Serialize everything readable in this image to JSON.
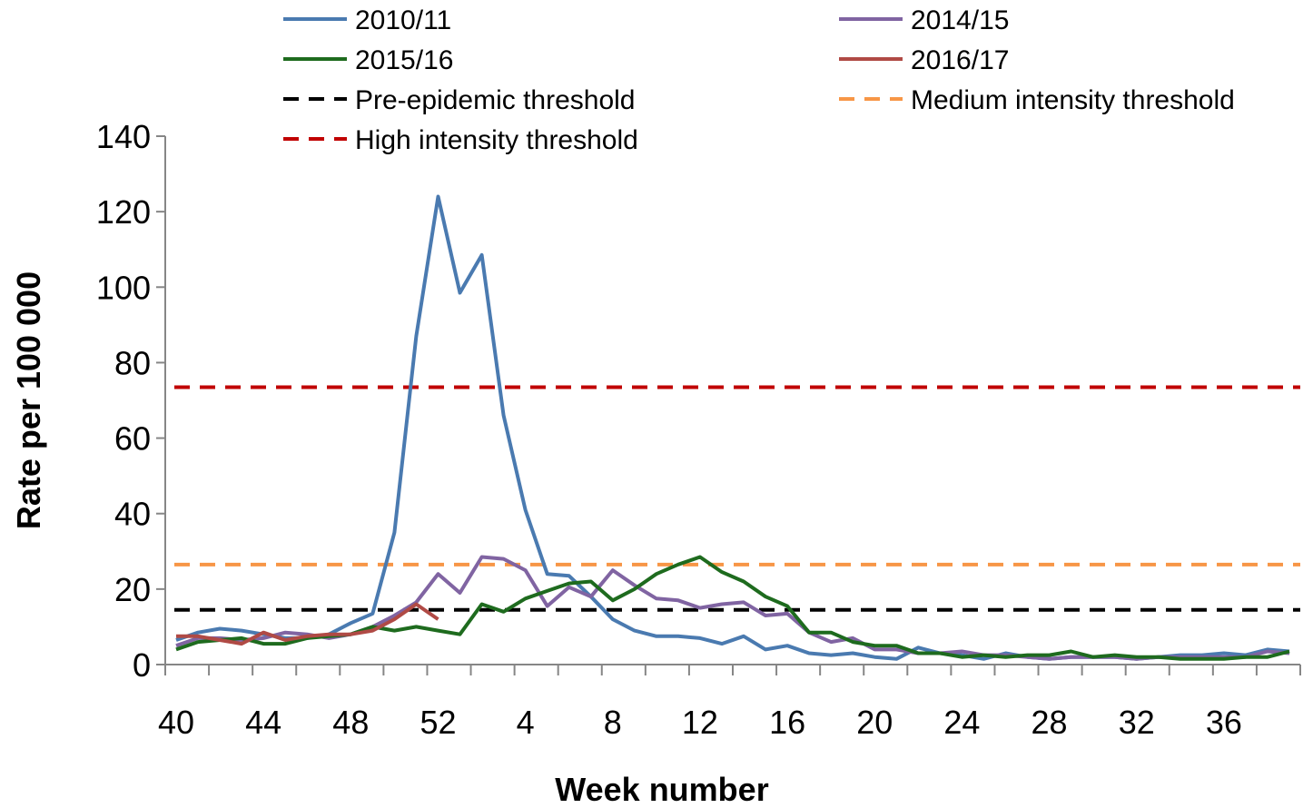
{
  "chart_data": {
    "type": "line",
    "title": "",
    "xlabel": "Week number",
    "ylabel": "Rate per 100 000",
    "ylim": [
      0,
      140
    ],
    "yticks": [
      0,
      20,
      40,
      60,
      80,
      100,
      120,
      140
    ],
    "x_weeks": [
      40,
      41,
      42,
      43,
      44,
      45,
      46,
      47,
      48,
      49,
      50,
      51,
      52,
      1,
      2,
      3,
      4,
      5,
      6,
      7,
      8,
      9,
      10,
      11,
      12,
      13,
      14,
      15,
      16,
      17,
      18,
      19,
      20,
      21,
      22,
      23,
      24,
      25,
      26,
      27,
      28,
      29,
      30,
      31,
      32,
      33,
      34,
      35,
      36,
      37,
      38,
      39
    ],
    "x_tick_labels": [
      "40",
      "44",
      "48",
      "52",
      "4",
      "8",
      "12",
      "16",
      "20",
      "24",
      "28",
      "32",
      "36"
    ],
    "x_tick_indices": [
      0,
      4,
      8,
      12,
      16,
      20,
      24,
      28,
      32,
      36,
      40,
      44,
      48
    ],
    "grid": false,
    "legend_position": "top",
    "series": [
      {
        "name": "2010/11",
        "color": "#4a7ab0",
        "values": [
          6.5,
          8.5,
          9.5,
          9,
          8,
          7,
          7,
          8,
          11,
          13.5,
          35,
          87,
          124,
          98.5,
          108.5,
          66,
          41,
          24,
          23.5,
          18,
          12,
          9,
          7.5,
          7.5,
          7,
          5.5,
          7.5,
          4,
          5,
          3,
          2.5,
          3,
          2,
          1.5,
          4.5,
          3,
          2.5,
          1.5,
          3,
          2,
          1.5,
          2,
          2,
          2,
          1.5,
          2,
          2.5,
          2.5,
          3,
          2.5,
          4,
          3.5
        ]
      },
      {
        "name": "2014/15",
        "color": "#8064a2",
        "values": [
          5,
          7,
          7,
          6.5,
          7,
          8.5,
          8,
          7,
          8,
          10,
          13,
          16.5,
          24,
          19,
          28.5,
          28,
          25,
          15.5,
          20.5,
          18,
          25,
          21,
          17.5,
          17,
          15,
          16,
          16.5,
          13,
          13.5,
          8.5,
          6,
          7,
          4,
          4,
          3,
          3,
          3.5,
          2.5,
          2.5,
          2,
          1.5,
          2,
          2,
          2,
          1.5,
          2,
          2,
          2,
          2,
          2,
          3.5,
          3
        ]
      },
      {
        "name": "2015/16",
        "color": "#1e6b1e",
        "values": [
          4,
          6,
          6.5,
          7,
          5.5,
          5.5,
          7,
          7.5,
          8,
          10,
          9,
          10,
          9,
          8,
          16,
          14,
          17.5,
          19.5,
          21.5,
          22,
          17,
          20,
          24,
          26.5,
          28.5,
          24.5,
          22,
          18,
          15.5,
          8.5,
          8.5,
          6,
          5,
          5,
          3,
          3,
          2,
          2.5,
          2,
          2.5,
          2.5,
          3.5,
          2,
          2.5,
          2,
          2,
          1.5,
          1.5,
          1.5,
          2,
          2,
          3.5
        ]
      },
      {
        "name": "2016/17",
        "color": "#b04a45",
        "values": [
          7.5,
          7.5,
          6.5,
          5.5,
          8.5,
          6.5,
          7.5,
          8,
          8,
          9,
          12,
          16,
          12
        ]
      }
    ],
    "thresholds": [
      {
        "name": "Pre-epidemic threshold",
        "value": 14.5,
        "color": "#000000"
      },
      {
        "name": "Medium intensity threshold",
        "value": 26.5,
        "color": "#f79646"
      },
      {
        "name": "High intensity threshold",
        "value": 73.5,
        "color": "#c00000"
      }
    ]
  }
}
